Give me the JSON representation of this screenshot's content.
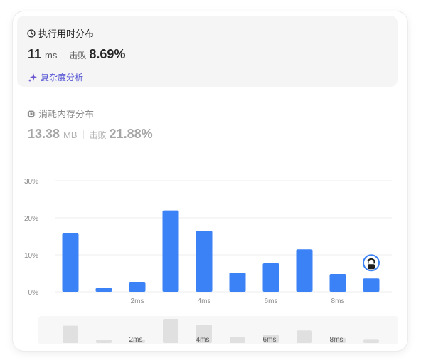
{
  "runtime": {
    "title": "执行用时分布",
    "value": "11",
    "unit": "ms",
    "beat_label": "击败",
    "beat_value": "8.69%",
    "complexity_link": "复杂度分析"
  },
  "memory": {
    "title": "消耗内存分布",
    "value": "13.38",
    "unit": "MB",
    "beat_label": "击败",
    "beat_value": "21.88%"
  },
  "colors": {
    "bar": "#3b82f6",
    "accent": "#5b5bd6"
  },
  "chart_data": {
    "type": "bar",
    "title": "执行用时分布",
    "xlabel": "",
    "ylabel": "",
    "ylim": [
      0,
      30
    ],
    "yticks": [
      "0%",
      "10%",
      "20%",
      "30%"
    ],
    "x": [
      1,
      2,
      3,
      4,
      5,
      6,
      7,
      8,
      9,
      10
    ],
    "values": [
      15.8,
      1.0,
      2.7,
      22.0,
      16.5,
      5.2,
      7.7,
      11.5,
      4.8,
      3.6
    ],
    "xticks": [
      {
        "x": 3,
        "label": "2ms"
      },
      {
        "x": 5,
        "label": "4ms"
      },
      {
        "x": 7,
        "label": "6ms"
      },
      {
        "x": 9,
        "label": "8ms"
      }
    ],
    "highlight_index": 9,
    "grid": true
  }
}
